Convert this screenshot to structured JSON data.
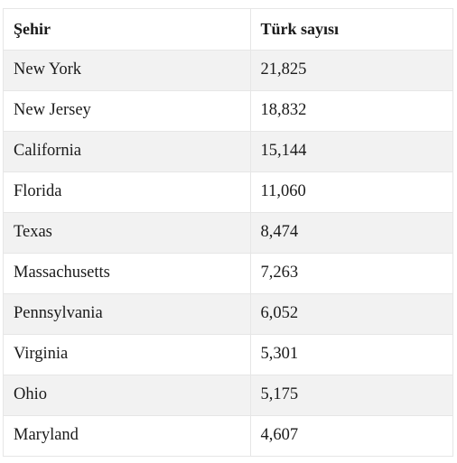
{
  "table": {
    "headers": [
      "Şehir",
      "Türk sayısı"
    ],
    "rows": [
      [
        "New York",
        "21,825"
      ],
      [
        "New Jersey",
        "18,832"
      ],
      [
        "California",
        "15,144"
      ],
      [
        "Florida",
        "11,060"
      ],
      [
        "Texas",
        "8,474"
      ],
      [
        "Massachusetts",
        "7,263"
      ],
      [
        "Pennsylvania",
        "6,052"
      ],
      [
        "Virginia",
        "5,301"
      ],
      [
        "Ohio",
        "5,175"
      ],
      [
        "Maryland",
        "4,607"
      ]
    ]
  }
}
